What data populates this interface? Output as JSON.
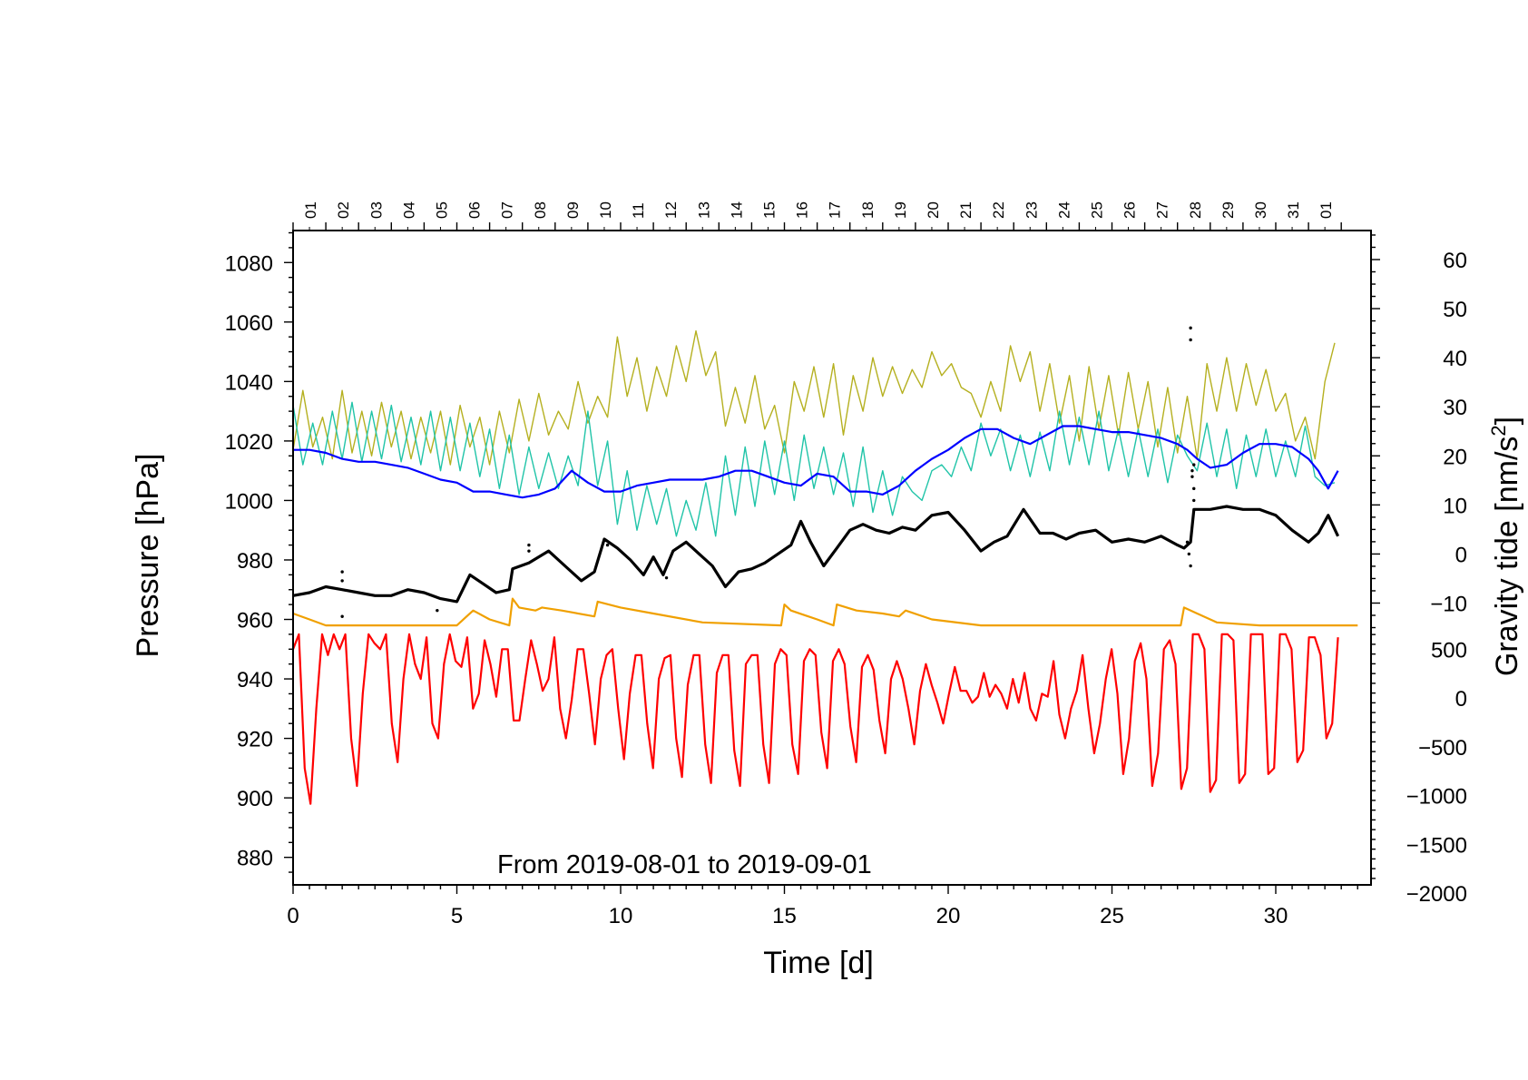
{
  "chart_data": {
    "type": "line",
    "date_range_text": "From 2019-08-01 to 2019-09-01",
    "xlabel": "Time [d]",
    "ylabel_left": "Pressure [hPa]",
    "ylabel_right": "Gravity tide [nm/s²]",
    "ylabel_right_base": "Gravity tide [nm/s",
    "ylabel_right_sup": "2",
    "ylabel_right_end": "]",
    "xlim": [
      -1,
      33
    ],
    "x_ticks": [
      0,
      5,
      10,
      15,
      20,
      25,
      30
    ],
    "x_tick_labels": [
      "0",
      "5",
      "10",
      "15",
      "20",
      "25",
      "30"
    ],
    "left_ylim": [
      870,
      1090
    ],
    "left_ticks": [
      880,
      900,
      920,
      940,
      960,
      980,
      1000,
      1020,
      1040,
      1060,
      1080
    ],
    "left_tick_labels": [
      "880",
      "900",
      "920",
      "940",
      "960",
      "980",
      "1000",
      "1020",
      "1040",
      "1060",
      "1080"
    ],
    "right_upper_ticks": [
      {
        "value": 60,
        "label": "60"
      },
      {
        "value": 50,
        "label": "50"
      },
      {
        "value": 40,
        "label": "40"
      },
      {
        "value": 30,
        "label": "30"
      },
      {
        "value": 20,
        "label": "20"
      },
      {
        "value": 10,
        "label": "10"
      },
      {
        "value": 0,
        "label": "0"
      },
      {
        "value": -10,
        "label": "−10"
      }
    ],
    "right_lower_ticks": [
      {
        "value": 500,
        "label": "500"
      },
      {
        "value": 0,
        "label": "0"
      },
      {
        "value": -500,
        "label": "−500"
      },
      {
        "value": -1000,
        "label": "−1000"
      },
      {
        "value": -1500,
        "label": "−1500"
      },
      {
        "value": -2000,
        "label": "−2000"
      }
    ],
    "right_upper_mapping": {
      "value_a": 60,
      "pressure_a": 1081,
      "value_b": 0,
      "pressure_b": 982
    },
    "right_lower_mapping": {
      "value_a": 500,
      "pressure_a": 950,
      "value_b": -2000,
      "pressure_b": 868
    },
    "day_labels": [
      "01",
      "02",
      "03",
      "04",
      "05",
      "06",
      "07",
      "08",
      "09",
      "10",
      "11",
      "12",
      "13",
      "14",
      "15",
      "16",
      "17",
      "18",
      "19",
      "20",
      "21",
      "22",
      "23",
      "24",
      "25",
      "26",
      "27",
      "28",
      "29",
      "30",
      "31",
      "01"
    ],
    "series": [
      {
        "name": "pressure_black",
        "color": "#000000",
        "axis": "left",
        "x": [
          0,
          0.5,
          1,
          1.5,
          2,
          2.5,
          3,
          3.5,
          4,
          4.5,
          5,
          5.4,
          5.8,
          6.2,
          6.6,
          6.7,
          7.2,
          7.8,
          8.3,
          8.8,
          9.2,
          9.5,
          9.9,
          10.3,
          10.7,
          11.0,
          11.3,
          11.6,
          12.0,
          12.4,
          12.8,
          13.2,
          13.6,
          14.0,
          14.4,
          14.8,
          15.2,
          15.5,
          15.8,
          16.2,
          16.6,
          17.0,
          17.4,
          17.8,
          18.2,
          18.6,
          19.0,
          19.5,
          20.0,
          20.5,
          21.0,
          21.4,
          21.8,
          22.3,
          22.8,
          23.2,
          23.6,
          24.0,
          24.5,
          25.0,
          25.5,
          26.0,
          26.5,
          27.0,
          27.2,
          27.4,
          27.5,
          28.0,
          28.5,
          29.0,
          29.5,
          30.0,
          30.5,
          31.0,
          31.3,
          31.6,
          31.9
        ],
        "values": [
          968,
          969,
          971,
          970,
          969,
          968,
          968,
          970,
          969,
          967,
          966,
          975,
          972,
          969,
          970,
          977,
          979,
          983,
          978,
          973,
          976,
          987,
          984,
          980,
          975,
          981,
          975,
          983,
          986,
          982,
          978,
          971,
          976,
          977,
          979,
          982,
          985,
          993,
          986,
          978,
          984,
          990,
          992,
          990,
          989,
          991,
          990,
          995,
          996,
          990,
          983,
          986,
          988,
          997,
          989,
          989,
          987,
          989,
          990,
          986,
          987,
          986,
          988,
          985,
          984,
          986,
          997,
          997,
          998,
          997,
          997,
          995,
          990,
          986,
          989,
          995,
          988
        ]
      },
      {
        "name": "blue_gravity_component",
        "color": "#0000ff",
        "axis": "right_upper",
        "x": [
          0,
          0.5,
          1,
          1.5,
          2,
          2.5,
          3,
          3.5,
          4,
          4.5,
          5,
          5.5,
          6,
          6.5,
          7,
          7.5,
          8,
          8.5,
          9,
          9.5,
          10,
          10.5,
          11,
          11.5,
          12,
          12.5,
          13,
          13.5,
          14,
          14.5,
          15,
          15.5,
          16,
          16.5,
          17,
          17.5,
          18,
          18.5,
          19,
          19.5,
          20,
          20.5,
          21,
          21.5,
          22,
          22.5,
          23,
          23.5,
          24,
          24.5,
          25,
          25.5,
          26,
          26.5,
          27,
          27.3,
          27.6,
          28.0,
          28.5,
          29.0,
          29.5,
          30.0,
          30.5,
          31.0,
          31.3,
          31.6,
          31.9
        ],
        "values": [
          1017,
          1017,
          1016,
          1014,
          1013,
          1013,
          1012,
          1011,
          1009,
          1007,
          1006,
          1003,
          1003,
          1002,
          1001,
          1002,
          1004,
          1010,
          1006,
          1003,
          1003,
          1005,
          1006,
          1007,
          1007,
          1007,
          1008,
          1010,
          1010,
          1008,
          1006,
          1005,
          1009,
          1008,
          1003,
          1003,
          1002,
          1005,
          1010,
          1014,
          1017,
          1021,
          1024,
          1024,
          1021,
          1019,
          1022,
          1025,
          1025,
          1024,
          1023,
          1023,
          1022,
          1021,
          1019,
          1017,
          1014,
          1011,
          1012,
          1016,
          1019,
          1019,
          1018,
          1014,
          1010,
          1004,
          1010
        ]
      },
      {
        "name": "olive_oscillation",
        "color": "#b5b020",
        "axis": "right_upper",
        "x": [
          0,
          0.3,
          0.6,
          0.9,
          1.2,
          1.5,
          1.8,
          2.1,
          2.4,
          2.7,
          3.0,
          3.3,
          3.6,
          3.9,
          4.2,
          4.5,
          4.8,
          5.1,
          5.4,
          5.7,
          6.0,
          6.3,
          6.6,
          6.9,
          7.2,
          7.5,
          7.8,
          8.1,
          8.4,
          8.7,
          9.0,
          9.3,
          9.6,
          9.9,
          10.2,
          10.5,
          10.8,
          11.1,
          11.4,
          11.7,
          12.0,
          12.3,
          12.6,
          12.9,
          13.2,
          13.5,
          13.8,
          14.1,
          14.4,
          14.7,
          15.0,
          15.3,
          15.6,
          15.9,
          16.2,
          16.5,
          16.8,
          17.1,
          17.4,
          17.7,
          18.0,
          18.3,
          18.6,
          18.9,
          19.2,
          19.5,
          19.8,
          20.1,
          20.4,
          20.7,
          21.0,
          21.3,
          21.6,
          21.9,
          22.2,
          22.5,
          22.8,
          23.1,
          23.4,
          23.7,
          24.0,
          24.3,
          24.6,
          24.9,
          25.2,
          25.5,
          25.8,
          26.1,
          26.4,
          26.7,
          27.0,
          27.3,
          27.6,
          27.9,
          28.2,
          28.5,
          28.8,
          29.1,
          29.4,
          29.7,
          30.0,
          30.3,
          30.6,
          30.9,
          31.2,
          31.5,
          31.8
        ],
        "values": [
          1017,
          1037,
          1018,
          1028,
          1014,
          1037,
          1016,
          1030,
          1015,
          1033,
          1018,
          1030,
          1014,
          1028,
          1016,
          1030,
          1012,
          1032,
          1018,
          1028,
          1012,
          1030,
          1016,
          1034,
          1020,
          1036,
          1022,
          1030,
          1024,
          1040,
          1026,
          1035,
          1028,
          1055,
          1035,
          1048,
          1030,
          1045,
          1035,
          1052,
          1040,
          1057,
          1042,
          1050,
          1025,
          1038,
          1026,
          1042,
          1024,
          1032,
          1016,
          1040,
          1030,
          1045,
          1028,
          1046,
          1022,
          1042,
          1030,
          1048,
          1035,
          1045,
          1036,
          1044,
          1038,
          1050,
          1042,
          1046,
          1038,
          1036,
          1028,
          1040,
          1030,
          1052,
          1040,
          1050,
          1030,
          1046,
          1026,
          1042,
          1020,
          1045,
          1024,
          1042,
          1022,
          1043,
          1024,
          1040,
          1018,
          1038,
          1016,
          1035,
          1014,
          1046,
          1030,
          1048,
          1030,
          1046,
          1032,
          1044,
          1030,
          1036,
          1020,
          1028,
          1014,
          1040,
          1053
        ]
      },
      {
        "name": "teal_oscillation",
        "color": "#20c4a8",
        "axis": "right_upper",
        "x": [
          0,
          0.3,
          0.6,
          0.9,
          1.2,
          1.5,
          1.8,
          2.1,
          2.4,
          2.7,
          3.0,
          3.3,
          3.6,
          3.9,
          4.2,
          4.5,
          4.8,
          5.1,
          5.4,
          5.7,
          6.0,
          6.3,
          6.6,
          6.9,
          7.2,
          7.5,
          7.8,
          8.1,
          8.4,
          8.7,
          9.0,
          9.3,
          9.6,
          9.9,
          10.2,
          10.5,
          10.8,
          11.1,
          11.4,
          11.7,
          12.0,
          12.3,
          12.6,
          12.9,
          13.2,
          13.5,
          13.8,
          14.1,
          14.4,
          14.7,
          15.0,
          15.3,
          15.6,
          15.9,
          16.2,
          16.5,
          16.8,
          17.1,
          17.4,
          17.7,
          18.0,
          18.3,
          18.6,
          18.9,
          19.2,
          19.5,
          19.8,
          20.1,
          20.4,
          20.7,
          21.0,
          21.3,
          21.6,
          21.9,
          22.2,
          22.5,
          22.8,
          23.1,
          23.4,
          23.7,
          24.0,
          24.3,
          24.6,
          24.9,
          25.2,
          25.5,
          25.8,
          26.1,
          26.4,
          26.7,
          27.0,
          27.3,
          27.6,
          27.9,
          28.2,
          28.5,
          28.8,
          29.1,
          29.4,
          29.7,
          30.0,
          30.3,
          30.6,
          30.9,
          31.2,
          31.5,
          31.8
        ],
        "values": [
          1032,
          1012,
          1026,
          1012,
          1030,
          1014,
          1033,
          1013,
          1030,
          1014,
          1032,
          1013,
          1028,
          1012,
          1030,
          1010,
          1028,
          1010,
          1026,
          1008,
          1024,
          1004,
          1022,
          1002,
          1018,
          1004,
          1016,
          1004,
          1015,
          1005,
          1030,
          1005,
          1020,
          992,
          1010,
          990,
          1005,
          992,
          1004,
          988,
          1000,
          990,
          1006,
          988,
          1015,
          995,
          1018,
          998,
          1020,
          1002,
          1020,
          1000,
          1022,
          1004,
          1018,
          1002,
          1016,
          998,
          1018,
          996,
          1010,
          995,
          1008,
          1003,
          1000,
          1010,
          1012,
          1008,
          1018,
          1010,
          1026,
          1015,
          1024,
          1010,
          1022,
          1008,
          1023,
          1010,
          1030,
          1012,
          1028,
          1012,
          1030,
          1010,
          1024,
          1008,
          1024,
          1008,
          1024,
          1006,
          1022,
          1015,
          1010,
          1026,
          1008,
          1024,
          1004,
          1022,
          1008,
          1024,
          1008,
          1020,
          1008,
          1025,
          1008,
          1005,
          1006
        ]
      },
      {
        "name": "orange_series",
        "color": "#f0a000",
        "axis": "left",
        "x": [
          0,
          0.5,
          1.0,
          2.0,
          4.0,
          5.0,
          5.3,
          5.5,
          6.0,
          6.6,
          6.7,
          6.9,
          7.4,
          7.6,
          8.2,
          9.2,
          9.3,
          10.0,
          11.0,
          12.5,
          14.9,
          15.0,
          15.2,
          16.0,
          16.5,
          16.6,
          17.2,
          18.0,
          18.5,
          18.7,
          19.5,
          21.0,
          24.0,
          27.1,
          27.2,
          27.6,
          28.2,
          29.5,
          31.0,
          32.5
        ],
        "values": [
          962,
          960,
          958,
          958,
          958,
          958,
          961,
          963,
          960,
          958,
          967,
          964,
          963,
          964,
          963,
          961,
          966,
          964,
          962,
          959,
          958,
          965,
          963,
          960,
          958,
          965,
          963,
          962,
          961,
          963,
          960,
          958,
          958,
          958,
          964,
          962,
          959,
          958,
          958,
          958
        ]
      },
      {
        "name": "red_tide",
        "color": "#ff0000",
        "axis": "right_lower",
        "x_start": 0,
        "x_end": 31.9,
        "values": [
          950,
          955,
          910,
          898,
          930,
          955,
          948,
          955,
          950,
          955,
          920,
          904,
          935,
          955,
          952,
          950,
          955,
          925,
          912,
          940,
          955,
          945,
          940,
          954,
          925,
          920,
          945,
          955,
          946,
          944,
          954,
          930,
          935,
          953,
          945,
          934,
          950,
          950,
          926,
          926,
          940,
          953,
          945,
          936,
          940,
          954,
          930,
          920,
          933,
          950,
          950,
          935,
          918,
          940,
          948,
          950,
          930,
          913,
          935,
          948,
          948,
          925,
          910,
          940,
          947,
          948,
          920,
          907,
          938,
          948,
          948,
          918,
          905,
          942,
          948,
          948,
          916,
          904,
          945,
          948,
          948,
          918,
          905,
          945,
          950,
          948,
          918,
          908,
          946,
          950,
          948,
          922,
          910,
          946,
          950,
          945,
          924,
          912,
          944,
          948,
          943,
          926,
          915,
          940,
          946,
          940,
          930,
          918,
          936,
          945,
          938,
          932,
          925,
          935,
          944,
          936,
          936,
          932,
          934,
          942,
          934,
          938,
          935,
          930,
          940,
          932,
          942,
          930,
          926,
          935,
          934,
          946,
          928,
          920,
          930,
          936,
          948,
          930,
          915,
          925,
          940,
          950,
          935,
          908,
          920,
          946,
          952,
          940,
          904,
          915,
          950,
          953,
          945,
          903,
          910,
          955,
          955,
          950,
          902,
          906,
          955,
          955,
          953,
          905,
          908,
          955,
          955,
          955,
          908,
          910,
          955,
          955,
          950,
          912,
          916,
          954,
          954,
          948,
          920,
          925,
          954
        ]
      }
    ],
    "scatter_outliers": [
      {
        "x": 1.5,
        "y": 976
      },
      {
        "x": 1.5,
        "y": 973
      },
      {
        "x": 1.5,
        "y": 961
      },
      {
        "x": 4.4,
        "y": 963
      },
      {
        "x": 7.2,
        "y": 985
      },
      {
        "x": 7.2,
        "y": 983
      },
      {
        "x": 9.6,
        "y": 985
      },
      {
        "x": 11.4,
        "y": 974
      },
      {
        "x": 27.4,
        "y": 1058
      },
      {
        "x": 27.4,
        "y": 1054
      },
      {
        "x": 27.5,
        "y": 1012
      },
      {
        "x": 27.45,
        "y": 1010
      },
      {
        "x": 27.45,
        "y": 1008
      },
      {
        "x": 27.3,
        "y": 986
      },
      {
        "x": 27.35,
        "y": 982
      },
      {
        "x": 27.4,
        "y": 978
      },
      {
        "x": 27.5,
        "y": 1000
      },
      {
        "x": 27.5,
        "y": 1004
      }
    ]
  }
}
